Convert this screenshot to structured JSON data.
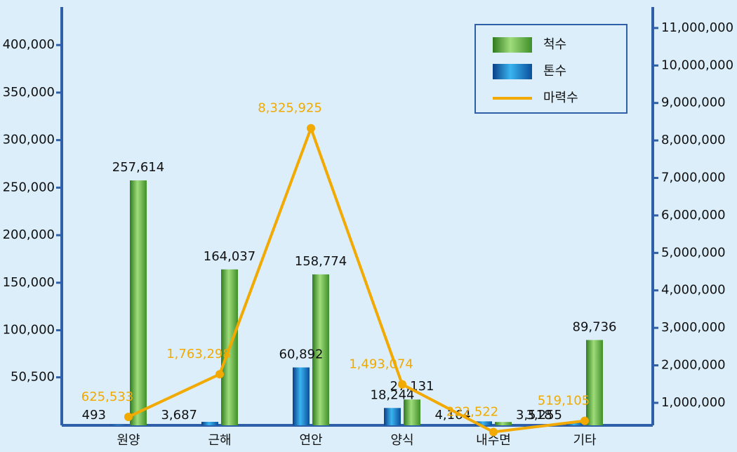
{
  "chart_data": {
    "type": "bar-line",
    "categories": [
      "원양",
      "근해",
      "연안",
      "양식",
      "내수면",
      "기타"
    ],
    "series": [
      {
        "name": "척수",
        "color": "#5aa83c",
        "values": [
          257614,
          164037,
          158774,
          27131,
          3518,
          89736
        ],
        "value_labels": [
          "257,614",
          "164,037",
          "158,774",
          "27,131",
          "3,518",
          "89,736"
        ]
      },
      {
        "name": "톤수",
        "color": "#1a7fc8",
        "values": [
          493,
          3687,
          60892,
          18244,
          4164,
          3255
        ],
        "value_labels": [
          "493",
          "3,687",
          "60,892",
          "18,244",
          "4,164",
          "3,255"
        ]
      },
      {
        "name": "마력수",
        "color": "#f2a900",
        "axis": "y2",
        "values": [
          625533,
          1763298,
          8325925,
          1493074,
          222522,
          519105
        ],
        "value_labels": [
          "625,533",
          "1,763,298",
          "8,325,925",
          "1,493,074",
          "222,522",
          "519,105"
        ]
      }
    ],
    "ylim": [
      0,
      440000
    ],
    "yticks": [
      {
        "value": 50500,
        "label": "50,500"
      },
      {
        "value": 100000,
        "label": "100,000"
      },
      {
        "value": 150000,
        "label": "150,000"
      },
      {
        "value": 200000,
        "label": "200,000"
      },
      {
        "value": 250000,
        "label": "250,000"
      },
      {
        "value": 300000,
        "label": "300,000"
      },
      {
        "value": 350000,
        "label": "350,000"
      },
      {
        "value": 400000,
        "label": "400,000"
      }
    ],
    "y2lim": [
      400000,
      11560000
    ],
    "y2ticks": [
      {
        "value": 1000000,
        "label": "1,000,000"
      },
      {
        "value": 2000000,
        "label": "2,000,000"
      },
      {
        "value": 3000000,
        "label": "3,000,000"
      },
      {
        "value": 4000000,
        "label": "4,000,000"
      },
      {
        "value": 5000000,
        "label": "5,000,000"
      },
      {
        "value": 6000000,
        "label": "6,000,000"
      },
      {
        "value": 7000000,
        "label": "7,000,000"
      },
      {
        "value": 8000000,
        "label": "8,000,000"
      },
      {
        "value": 9000000,
        "label": "9,000,000"
      },
      {
        "value": 10000000,
        "label": "10,000,000"
      },
      {
        "value": 11000000,
        "label": "11,000,000"
      }
    ],
    "legend": "upper-right"
  }
}
